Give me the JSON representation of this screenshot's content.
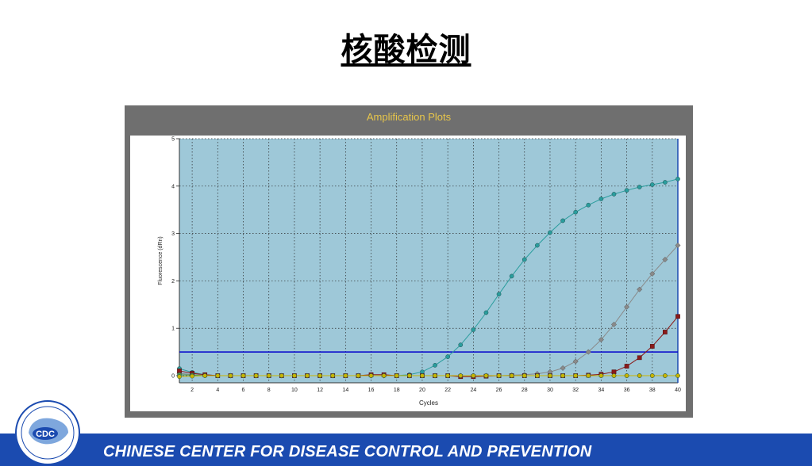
{
  "slide": {
    "title": "核酸检测",
    "footer": "CHINESE CENTER FOR DISEASE CONTROL AND PREVENTION",
    "logo_text": "CDC"
  },
  "colors": {
    "footer_bar": "#1b4bb0",
    "chart_header_bg": "#6f6f6f",
    "chart_header_text": "#e8c64a",
    "plot_bg": "#9ec8d8",
    "threshold": "#0000cc"
  },
  "chart_data": {
    "type": "line",
    "title": "Amplification Plots",
    "xlabel": "Cycles",
    "ylabel": "Fluorescence (dRn)",
    "xlim": [
      1,
      40
    ],
    "ylim": [
      -0.15,
      5
    ],
    "xticks": [
      2,
      4,
      6,
      8,
      10,
      12,
      14,
      16,
      18,
      20,
      22,
      24,
      26,
      28,
      30,
      32,
      34,
      36,
      38,
      40
    ],
    "yticks": [
      0,
      1,
      2,
      3,
      4,
      5
    ],
    "grid": true,
    "threshold": 0.5,
    "x": [
      1,
      2,
      3,
      4,
      5,
      6,
      7,
      8,
      9,
      10,
      11,
      12,
      13,
      14,
      15,
      16,
      17,
      18,
      19,
      20,
      21,
      22,
      23,
      24,
      25,
      26,
      27,
      28,
      29,
      30,
      31,
      32,
      33,
      34,
      35,
      36,
      37,
      38,
      39,
      40
    ],
    "series": [
      {
        "color": "#2a9d9d",
        "marker": "circle",
        "values": [
          0.15,
          0.07,
          0.02,
          0.0,
          0.0,
          0.0,
          0.0,
          0.0,
          0.0,
          0.0,
          0.0,
          0.0,
          0.0,
          0.0,
          0.0,
          0.0,
          0.0,
          0.0,
          0.02,
          0.08,
          0.22,
          0.4,
          0.65,
          0.97,
          1.33,
          1.72,
          2.1,
          2.45,
          2.75,
          3.02,
          3.27,
          3.45,
          3.6,
          3.73,
          3.83,
          3.91,
          3.98,
          4.03,
          4.08,
          4.15
        ]
      },
      {
        "color": "#8a8a8a",
        "marker": "diamond",
        "values": [
          0.05,
          0.02,
          0.01,
          0.0,
          0.0,
          0.0,
          0.0,
          0.0,
          0.0,
          0.0,
          0.0,
          0.0,
          0.0,
          0.0,
          0.0,
          0.0,
          0.0,
          0.0,
          0.0,
          0.0,
          0.0,
          0.0,
          0.0,
          0.0,
          0.0,
          0.0,
          0.01,
          0.02,
          0.04,
          0.08,
          0.16,
          0.3,
          0.5,
          0.76,
          1.08,
          1.45,
          1.82,
          2.15,
          2.45,
          2.75
        ]
      },
      {
        "color": "#8b1a1a",
        "marker": "square",
        "values": [
          0.1,
          0.05,
          0.02,
          0.0,
          0.0,
          0.0,
          0.0,
          0.0,
          0.0,
          0.0,
          0.0,
          0.0,
          0.0,
          0.0,
          0.0,
          0.02,
          0.02,
          0.0,
          0.0,
          0.0,
          0.0,
          0.0,
          -0.02,
          -0.02,
          -0.01,
          0.0,
          0.0,
          0.0,
          0.0,
          0.0,
          0.0,
          0.0,
          0.01,
          0.03,
          0.08,
          0.2,
          0.38,
          0.62,
          0.92,
          1.25
        ]
      },
      {
        "color": "#4f9a4f",
        "marker": "circle",
        "values": [
          0.02,
          0.01,
          0.0,
          0.0,
          0.0,
          0.0,
          0.0,
          0.0,
          0.0,
          0.0,
          0.0,
          0.0,
          0.0,
          0.0,
          0.0,
          0.0,
          0.0,
          0.0,
          0.0,
          0.0,
          0.0,
          0.0,
          0.0,
          0.0,
          0.0,
          0.0,
          0.0,
          0.0,
          0.0,
          0.0,
          0.0,
          0.0,
          0.0,
          0.0,
          0.0,
          0.0,
          0.0,
          0.0,
          0.0,
          0.0
        ]
      },
      {
        "color": "#c8b400",
        "marker": "circle",
        "values": [
          -0.02,
          -0.01,
          0.0,
          0.0,
          0.0,
          0.0,
          0.0,
          0.0,
          0.0,
          0.0,
          0.0,
          0.0,
          0.0,
          0.0,
          0.0,
          0.0,
          0.0,
          0.0,
          0.0,
          0.0,
          0.0,
          0.0,
          0.0,
          0.0,
          0.0,
          0.0,
          0.0,
          0.0,
          0.0,
          0.0,
          0.0,
          0.0,
          0.0,
          0.0,
          0.0,
          0.0,
          0.0,
          0.0,
          0.0,
          0.0
        ]
      }
    ]
  }
}
